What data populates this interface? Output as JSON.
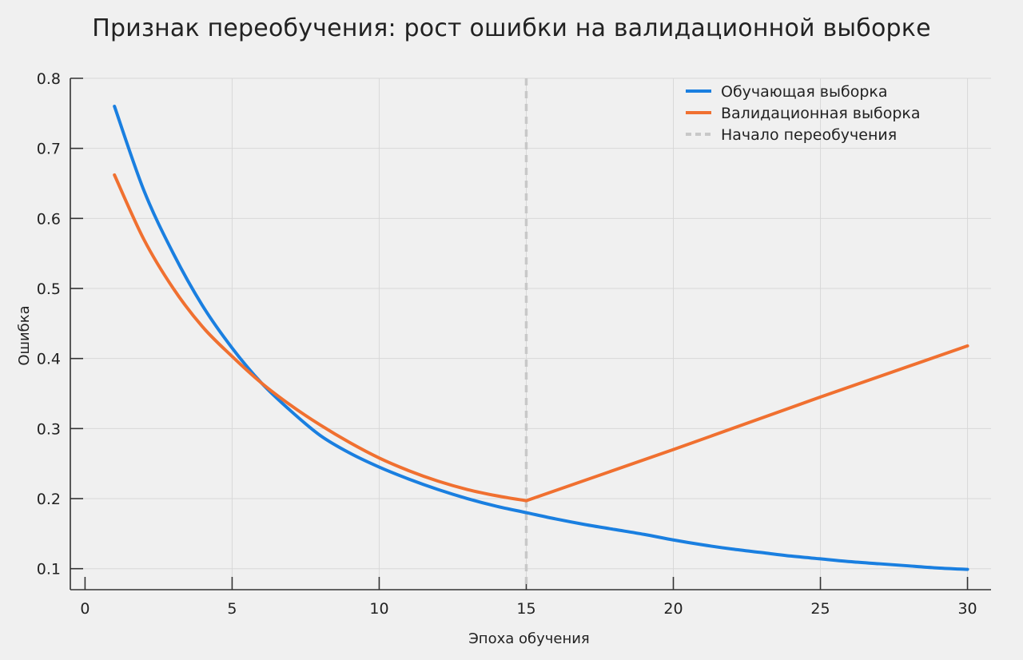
{
  "chart_data": {
    "type": "line",
    "title": "Признак переобучения: рост ошибки на валидационной выборке",
    "xlabel": "Эпоха обучения",
    "ylabel": "Ошибка",
    "xlim": [
      -0.5,
      30.8
    ],
    "ylim": [
      0.07,
      0.8
    ],
    "xticks": [
      0,
      5,
      10,
      15,
      20,
      25,
      30
    ],
    "yticks": [
      0.1,
      0.2,
      0.3,
      0.4,
      0.5,
      0.6,
      0.7,
      0.8
    ],
    "xtick_labels": [
      "0",
      "5",
      "10",
      "15",
      "20",
      "25",
      "30"
    ],
    "ytick_labels": [
      "0.1",
      "0.2",
      "0.3",
      "0.4",
      "0.5",
      "0.6",
      "0.7",
      "0.8"
    ],
    "grid": true,
    "legend_position": "top-right",
    "series": [
      {
        "name": "Обучающая выборка",
        "color": "#1a7fe0",
        "x": [
          1,
          2,
          3,
          4,
          5,
          6,
          7,
          8,
          9,
          10,
          11,
          12,
          13,
          14,
          15,
          16,
          17,
          18,
          19,
          20,
          21,
          22,
          23,
          24,
          25,
          26,
          27,
          28,
          29,
          30
        ],
        "y": [
          0.76,
          0.64,
          0.55,
          0.475,
          0.415,
          0.365,
          0.325,
          0.29,
          0.265,
          0.245,
          0.228,
          0.213,
          0.2,
          0.189,
          0.18,
          0.171,
          0.163,
          0.156,
          0.149,
          0.141,
          0.134,
          0.128,
          0.123,
          0.118,
          0.114,
          0.11,
          0.107,
          0.104,
          0.101,
          0.099
        ]
      },
      {
        "name": "Валидационная выборка",
        "color": "#f07030",
        "x": [
          1,
          2,
          3,
          4,
          5,
          6,
          7,
          8,
          9,
          10,
          11,
          12,
          13,
          14,
          15,
          20,
          25,
          30
        ],
        "y": [
          0.662,
          0.57,
          0.5,
          0.445,
          0.403,
          0.365,
          0.333,
          0.305,
          0.28,
          0.258,
          0.24,
          0.225,
          0.213,
          0.204,
          0.197,
          0.27,
          0.345,
          0.418
        ]
      }
    ],
    "markers": [
      {
        "name": "Начало переобучения",
        "type": "vline",
        "x": 15,
        "color": "#c8c8c8",
        "dash": true
      }
    ]
  }
}
